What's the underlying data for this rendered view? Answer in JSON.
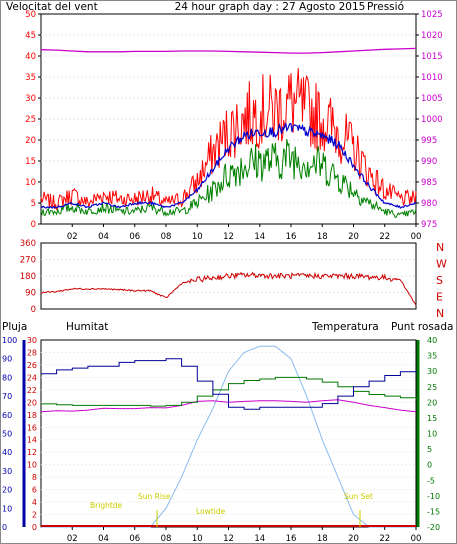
{
  "title": "24 hour graph day : 27 Agosto 2015",
  "colors": {
    "wind_speed": "#ff0000",
    "wind_avg": "#0000cc",
    "wind_gust": "#008000",
    "pressure": "#cc00cc",
    "direction": "#cc0000",
    "rain": "#cc0000",
    "humidity": "#000099",
    "temperature": "#007700",
    "dewpoint": "#cc00cc",
    "solar": "#88bbee",
    "sun_label": "#cccc00",
    "axis_left_blue": "#0000aa",
    "axis_rain": "#cc0000"
  },
  "x_ticks": [
    "02",
    "04",
    "06",
    "08",
    "10",
    "12",
    "14",
    "16",
    "18",
    "20",
    "22",
    "00"
  ],
  "panels": {
    "wind": {
      "left_label": "Velocitat del vent",
      "right_label": "Pressió",
      "left_ticks": [
        "0",
        "5",
        "10",
        "15",
        "20",
        "25",
        "30",
        "35",
        "40",
        "45",
        "50"
      ],
      "right_ticks": [
        "975",
        "980",
        "985",
        "990",
        "995",
        "1000",
        "1005",
        "1010",
        "1015",
        "1020",
        "1025"
      ]
    },
    "direction": {
      "left_ticks": [
        "0",
        "90",
        "180",
        "270",
        "360"
      ],
      "right_letters": [
        "N",
        "W",
        "S",
        "E",
        "N"
      ]
    },
    "climate": {
      "rain_label": "Pluja",
      "humidity_label": "Humitat",
      "temperature_label": "Temperatura",
      "dewpoint_label": "Punt rosada",
      "humidity_ticks": [
        "0",
        "10",
        "20",
        "30",
        "40",
        "50",
        "60",
        "70",
        "80",
        "90",
        "100"
      ],
      "rain_ticks": [
        "0",
        "2",
        "4",
        "6",
        "8",
        "10",
        "12",
        "14",
        "16",
        "18",
        "20",
        "22",
        "24",
        "26",
        "28",
        "30"
      ],
      "temp_ticks": [
        "-20",
        "-15",
        "-10",
        "-5",
        "0",
        "5",
        "10",
        "15",
        "20",
        "25",
        "30",
        "35",
        "40"
      ],
      "annotations": {
        "sunrise": "Sun Rise",
        "sunset": "Sun Set",
        "brightday": "Brightde",
        "lowtide": "Lowtide"
      }
    }
  },
  "chart_data": [
    {
      "type": "line",
      "x": [
        "00",
        "01",
        "02",
        "03",
        "04",
        "05",
        "06",
        "07",
        "08",
        "09",
        "10",
        "11",
        "12",
        "13",
        "14",
        "15",
        "16",
        "17",
        "18",
        "19",
        "20",
        "21",
        "22",
        "23",
        "00"
      ],
      "series": [
        {
          "values": [
            6,
            5,
            7,
            5,
            7,
            6,
            6,
            7,
            5,
            6,
            10,
            17,
            22,
            25,
            27,
            27,
            29,
            27,
            25,
            22,
            18,
            12,
            8,
            6,
            6
          ]
        },
        {
          "values": [
            4,
            4,
            5,
            4,
            5,
            4,
            5,
            5,
            4,
            5,
            8,
            13,
            18,
            21,
            22,
            22,
            23,
            22,
            21,
            19,
            14,
            9,
            5,
            4,
            5
          ]
        },
        {
          "values": [
            3,
            3,
            4,
            3,
            4,
            3,
            3,
            4,
            3,
            3,
            5,
            8,
            12,
            14,
            15,
            15,
            16,
            15,
            14,
            11,
            8,
            5,
            3,
            2,
            3
          ]
        },
        {
          "name": "Pressió",
          "values": [
            1016.5,
            1016.4,
            1016.2,
            1016.0,
            1016.0,
            1016.0,
            1016.1,
            1016.1,
            1016.1,
            1016.2,
            1016.2,
            1016.2,
            1016.1,
            1016.0,
            1015.9,
            1015.8,
            1015.7,
            1015.7,
            1015.8,
            1016.0,
            1016.2,
            1016.4,
            1016.6,
            1016.7,
            1016.8
          ]
        }
      ],
      "ylabel": "Velocitat del vent",
      "ylim": [
        0,
        50
      ],
      "y2label": "Pressió",
      "y2lim": [
        975,
        1025
      ]
    },
    {
      "type": "line",
      "x": [
        "00",
        "01",
        "02",
        "03",
        "04",
        "05",
        "06",
        "07",
        "08",
        "09",
        "10",
        "11",
        "12",
        "13",
        "14",
        "15",
        "16",
        "17",
        "18",
        "19",
        "20",
        "21",
        "22",
        "23",
        "00"
      ],
      "series": [
        {
          "values": [
            90,
            95,
            110,
            110,
            110,
            105,
            100,
            100,
            60,
            140,
            160,
            170,
            180,
            185,
            185,
            180,
            180,
            180,
            180,
            180,
            180,
            175,
            170,
            160,
            20
          ]
        }
      ],
      "ylim": [
        0,
        360
      ]
    },
    {
      "type": "line",
      "x": [
        "00",
        "01",
        "02",
        "03",
        "04",
        "05",
        "06",
        "07",
        "08",
        "09",
        "10",
        "11",
        "12",
        "13",
        "14",
        "15",
        "16",
        "17",
        "18",
        "19",
        "20",
        "21",
        "22",
        "23",
        "00"
      ],
      "series": [
        {
          "name": "Pluja",
          "axis": "rain",
          "values": [
            0,
            0,
            0,
            0,
            0,
            0,
            0,
            0,
            0,
            0,
            0,
            0,
            0,
            0,
            0,
            0,
            0,
            0,
            0,
            0,
            0,
            0,
            0,
            0,
            0
          ]
        },
        {
          "name": "Humitat",
          "axis": "humidity",
          "values": [
            82,
            84,
            85,
            86,
            86,
            88,
            89,
            89,
            90,
            86,
            78,
            71,
            64,
            63,
            64,
            64,
            64,
            64,
            66,
            70,
            75,
            78,
            81,
            83,
            84
          ]
        },
        {
          "name": "Temperatura",
          "axis": "temperature",
          "values": [
            19.5,
            19.2,
            19.0,
            19.0,
            19.0,
            19.0,
            19.0,
            18.8,
            19.0,
            20.0,
            22.0,
            24.0,
            26.0,
            27.0,
            27.5,
            28.0,
            28.0,
            27.5,
            26.5,
            25.0,
            23.5,
            22.5,
            22.0,
            21.5,
            21.0
          ]
        },
        {
          "name": "Punt rosada",
          "axis": "temperature",
          "values": [
            17.0,
            17.0,
            17.2,
            17.5,
            17.8,
            18.0,
            18.0,
            18.0,
            18.2,
            19.0,
            20.0,
            20.5,
            20.0,
            20.0,
            20.5,
            20.5,
            20.0,
            20.0,
            20.5,
            20.5,
            20.0,
            19.0,
            18.0,
            17.5,
            17.0
          ]
        },
        {
          "values": [
            0,
            0,
            0,
            0,
            0,
            0,
            0,
            0,
            3,
            8,
            14,
            19,
            25,
            28,
            29,
            29,
            27,
            21,
            14,
            8,
            2,
            0,
            0,
            0,
            0
          ]
        }
      ],
      "y_humidity_lim": [
        0,
        100
      ],
      "y_rain_lim": [
        0,
        30
      ],
      "y_temperature_lim": [
        -20,
        40
      ]
    }
  ]
}
